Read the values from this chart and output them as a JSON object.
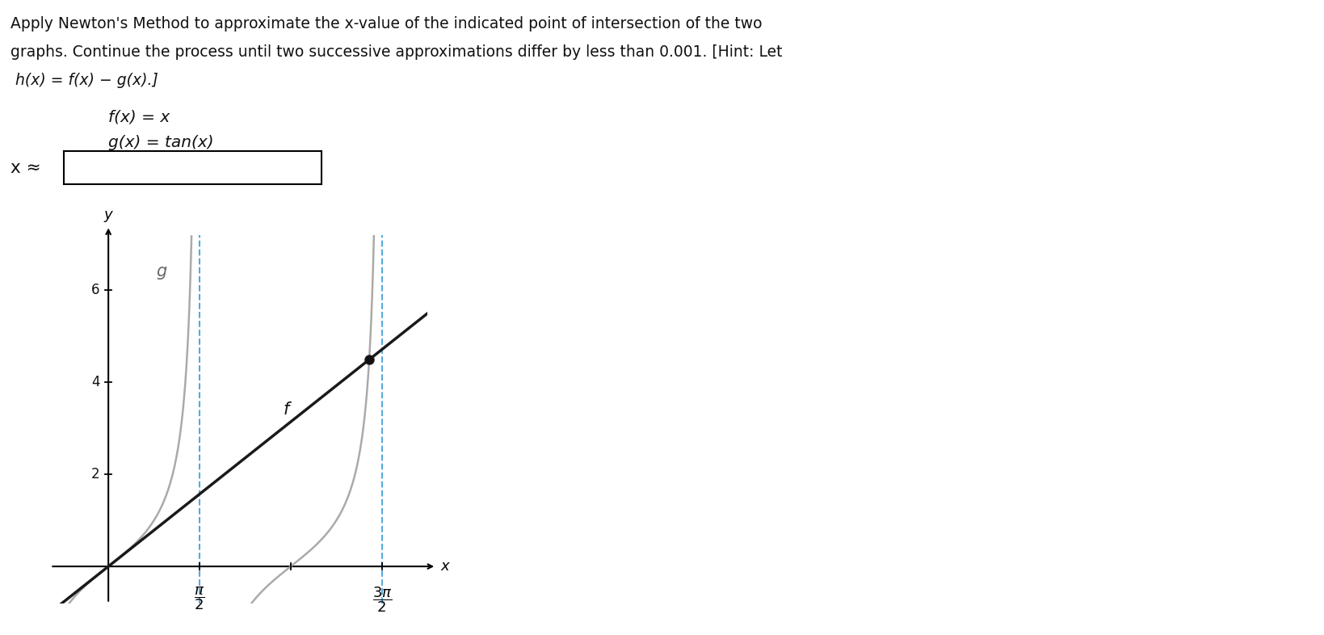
{
  "line1": "Apply Newton's Method to approximate the x-value of the indicated point of intersection of the two",
  "line2": "graphs. Continue the process until two successive approximations differ by less than 0.001. [Hint: Let",
  "line3": " h(x) = f(x) − g(x).]",
  "fx_label": "f(x) = x",
  "gx_label": "g(x) = tan(x)",
  "x_approx_label": "x ≈",
  "background_color": "#ffffff",
  "line_f_color": "#1a1a1a",
  "line_g_color": "#aaaaaa",
  "dashed_color": "#55aadd",
  "intersection_color": "#1a1a1a",
  "ylabel": "y",
  "xlabel": "x",
  "yticks": [
    2,
    4,
    6
  ],
  "xlim": [
    -1.0,
    5.5
  ],
  "ylim": [
    -0.8,
    7.2
  ],
  "pi_half": 1.5707963267948966,
  "three_pi_half": 4.71238898038469,
  "intersection_x": 4.493409457909064,
  "intersection_y": 4.493409457909064,
  "text_fontsize": 13.5,
  "label_fontsize": 14.5
}
